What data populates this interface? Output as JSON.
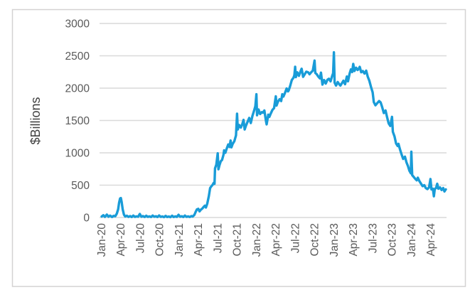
{
  "window": {
    "background_color": "#ffffff",
    "border_color": "#d4d2d2"
  },
  "chart_data": {
    "type": "line",
    "title": "",
    "xlabel": "",
    "ylabel": "$Billions",
    "legend": "none",
    "grid": "horizontal",
    "gridline_color": "#d9d9d9",
    "axis_text_color": "#595959",
    "ylabel_text_color": "#404040",
    "line_color": "#199cd8",
    "ylim": [
      0,
      3000
    ],
    "y_ticks": [
      0,
      500,
      1000,
      1500,
      2000,
      2500,
      3000
    ],
    "x_tick_labels": [
      "Jan-20",
      "Apr-20",
      "Jul-20",
      "Oct-20",
      "Jan-21",
      "Apr-21",
      "Jul-21",
      "Oct-21",
      "Jan-22",
      "Apr-22",
      "Jul-22",
      "Oct-22",
      "Jan-23",
      "Apr-23",
      "Jul-23",
      "Oct-23",
      "Jan-24",
      "Apr-24"
    ],
    "x_tick_month_index": [
      0,
      3,
      6,
      9,
      12,
      15,
      18,
      21,
      24,
      27,
      30,
      33,
      36,
      39,
      42,
      45,
      48,
      51
    ],
    "x_unit": "months since Jan-2020",
    "series": [
      {
        "color": "#199cd8",
        "points": [
          [
            0,
            15
          ],
          [
            0.25,
            35
          ],
          [
            0.5,
            10
          ],
          [
            0.8,
            45
          ],
          [
            1.05,
            12
          ],
          [
            1.3,
            30
          ],
          [
            1.6,
            8
          ],
          [
            1.85,
            25
          ],
          [
            2.1,
            20
          ],
          [
            2.35,
            60
          ],
          [
            2.55,
            130
          ],
          [
            2.7,
            230
          ],
          [
            2.85,
            295
          ],
          [
            2.97,
            300
          ],
          [
            3.1,
            240
          ],
          [
            3.25,
            130
          ],
          [
            3.45,
            45
          ],
          [
            3.65,
            15
          ],
          [
            3.9,
            28
          ],
          [
            4.15,
            10
          ],
          [
            4.4,
            22
          ],
          [
            4.65,
            8
          ],
          [
            4.9,
            30
          ],
          [
            5.15,
            10
          ],
          [
            5.4,
            18
          ],
          [
            5.65,
            12
          ],
          [
            5.9,
            55
          ],
          [
            6.15,
            12
          ],
          [
            6.4,
            22
          ],
          [
            6.65,
            8
          ],
          [
            6.9,
            28
          ],
          [
            7.15,
            10
          ],
          [
            7.4,
            18
          ],
          [
            7.65,
            8
          ],
          [
            7.9,
            30
          ],
          [
            8.15,
            12
          ],
          [
            8.4,
            20
          ],
          [
            8.65,
            8
          ],
          [
            8.9,
            32
          ],
          [
            9.15,
            10
          ],
          [
            9.4,
            16
          ],
          [
            9.65,
            6
          ],
          [
            9.9,
            25
          ],
          [
            10.15,
            8
          ],
          [
            10.4,
            15
          ],
          [
            10.65,
            6
          ],
          [
            10.9,
            28
          ],
          [
            11.15,
            8
          ],
          [
            11.4,
            18
          ],
          [
            11.65,
            10
          ],
          [
            11.9,
            42
          ],
          [
            12.15,
            12
          ],
          [
            12.4,
            20
          ],
          [
            12.65,
            8
          ],
          [
            12.9,
            30
          ],
          [
            13.15,
            10
          ],
          [
            13.4,
            18
          ],
          [
            13.65,
            8
          ],
          [
            13.9,
            22
          ],
          [
            14.1,
            15
          ],
          [
            14.35,
            40
          ],
          [
            14.55,
            85
          ],
          [
            14.75,
            125
          ],
          [
            14.97,
            134
          ],
          [
            15.15,
            95
          ],
          [
            15.35,
            120
          ],
          [
            15.6,
            140
          ],
          [
            15.8,
            165
          ],
          [
            15.97,
            182
          ],
          [
            16.15,
            155
          ],
          [
            16.35,
            215
          ],
          [
            16.6,
            330
          ],
          [
            16.8,
            455
          ],
          [
            16.97,
            480
          ],
          [
            17.15,
            500
          ],
          [
            17.35,
            535
          ],
          [
            17.48,
            521
          ],
          [
            17.56,
            760
          ],
          [
            17.75,
            815
          ],
          [
            17.97,
            992
          ],
          [
            18.08,
            745
          ],
          [
            18.25,
            810
          ],
          [
            18.45,
            870
          ],
          [
            18.65,
            890
          ],
          [
            18.85,
            965
          ],
          [
            18.97,
            1039
          ],
          [
            19.15,
            1000
          ],
          [
            19.35,
            1060
          ],
          [
            19.6,
            1130
          ],
          [
            19.8,
            1090
          ],
          [
            19.97,
            1190
          ],
          [
            20.1,
            1085
          ],
          [
            20.3,
            1140
          ],
          [
            20.55,
            1180
          ],
          [
            20.8,
            1270
          ],
          [
            20.97,
            1605
          ],
          [
            21.08,
            1360
          ],
          [
            21.3,
            1430
          ],
          [
            21.55,
            1390
          ],
          [
            21.8,
            1450
          ],
          [
            21.97,
            1510
          ],
          [
            22.15,
            1360
          ],
          [
            22.35,
            1420
          ],
          [
            22.6,
            1480
          ],
          [
            22.85,
            1540
          ],
          [
            23.1,
            1460
          ],
          [
            23.35,
            1570
          ],
          [
            23.6,
            1650
          ],
          [
            23.8,
            1720
          ],
          [
            23.97,
            1905
          ],
          [
            24.06,
            1580
          ],
          [
            24.3,
            1670
          ],
          [
            24.55,
            1600
          ],
          [
            24.8,
            1630
          ],
          [
            24.97,
            1620
          ],
          [
            25.2,
            1655
          ],
          [
            25.45,
            1490
          ],
          [
            25.55,
            1440
          ],
          [
            25.8,
            1590
          ],
          [
            25.97,
            1555
          ],
          [
            26.2,
            1610
          ],
          [
            26.45,
            1665
          ],
          [
            26.7,
            1690
          ],
          [
            26.97,
            1874
          ],
          [
            27.08,
            1730
          ],
          [
            27.3,
            1790
          ],
          [
            27.55,
            1830
          ],
          [
            27.8,
            1800
          ],
          [
            27.97,
            1906
          ],
          [
            28.15,
            1870
          ],
          [
            28.4,
            1930
          ],
          [
            28.65,
            1995
          ],
          [
            28.85,
            1950
          ],
          [
            28.97,
            1965
          ],
          [
            29.2,
            2035
          ],
          [
            29.45,
            2125
          ],
          [
            29.7,
            2160
          ],
          [
            29.85,
            2200
          ],
          [
            29.97,
            2330
          ],
          [
            30.08,
            2170
          ],
          [
            30.3,
            2245
          ],
          [
            30.55,
            2190
          ],
          [
            30.8,
            2260
          ],
          [
            30.97,
            2300
          ],
          [
            31.2,
            2175
          ],
          [
            31.45,
            2215
          ],
          [
            31.7,
            2255
          ],
          [
            31.97,
            2245
          ],
          [
            32.2,
            2215
          ],
          [
            32.45,
            2245
          ],
          [
            32.7,
            2270
          ],
          [
            32.97,
            2426
          ],
          [
            33.08,
            2235
          ],
          [
            33.3,
            2215
          ],
          [
            33.55,
            2180
          ],
          [
            33.8,
            2150
          ],
          [
            33.97,
            2240
          ],
          [
            34.2,
            2055
          ],
          [
            34.45,
            2125
          ],
          [
            34.7,
            2070
          ],
          [
            34.97,
            2130
          ],
          [
            35.2,
            2145
          ],
          [
            35.45,
            2105
          ],
          [
            35.7,
            2190
          ],
          [
            35.85,
            2230
          ],
          [
            35.97,
            2554
          ],
          [
            36.08,
            2085
          ],
          [
            36.3,
            2040
          ],
          [
            36.55,
            2095
          ],
          [
            36.8,
            2060
          ],
          [
            36.97,
            2040
          ],
          [
            37.2,
            2075
          ],
          [
            37.45,
            2115
          ],
          [
            37.7,
            2060
          ],
          [
            37.97,
            2180
          ],
          [
            38.15,
            2105
          ],
          [
            38.4,
            2225
          ],
          [
            38.6,
            2290
          ],
          [
            38.8,
            2250
          ],
          [
            38.97,
            2375
          ],
          [
            39.15,
            2265
          ],
          [
            39.4,
            2315
          ],
          [
            39.65,
            2280
          ],
          [
            39.85,
            2305
          ],
          [
            39.97,
            2330
          ],
          [
            40.2,
            2245
          ],
          [
            40.45,
            2265
          ],
          [
            40.7,
            2225
          ],
          [
            40.97,
            2270
          ],
          [
            41.2,
            2180
          ],
          [
            41.45,
            2115
          ],
          [
            41.7,
            2025
          ],
          [
            41.97,
            1934
          ],
          [
            42.15,
            1785
          ],
          [
            42.4,
            1735
          ],
          [
            42.65,
            1765
          ],
          [
            42.97,
            1800
          ],
          [
            43.2,
            1780
          ],
          [
            43.45,
            1705
          ],
          [
            43.7,
            1615
          ],
          [
            43.97,
            1655
          ],
          [
            44.2,
            1555
          ],
          [
            44.45,
            1455
          ],
          [
            44.7,
            1415
          ],
          [
            44.97,
            1556
          ],
          [
            45.1,
            1325
          ],
          [
            45.35,
            1255
          ],
          [
            45.6,
            1145
          ],
          [
            45.85,
            1105
          ],
          [
            45.97,
            1138
          ],
          [
            46.2,
            1055
          ],
          [
            46.45,
            975
          ],
          [
            46.7,
            905
          ],
          [
            46.97,
            941
          ],
          [
            47.2,
            855
          ],
          [
            47.45,
            795
          ],
          [
            47.65,
            725
          ],
          [
            47.88,
            683
          ],
          [
            47.96,
            1018
          ],
          [
            48.1,
            655
          ],
          [
            48.35,
            625
          ],
          [
            48.6,
            595
          ],
          [
            48.8,
            575
          ],
          [
            48.97,
            615
          ],
          [
            49.2,
            565
          ],
          [
            49.45,
            525
          ],
          [
            49.7,
            485
          ],
          [
            49.97,
            500
          ],
          [
            50.2,
            455
          ],
          [
            50.45,
            440
          ],
          [
            50.7,
            465
          ],
          [
            50.92,
            594
          ],
          [
            51.08,
            435
          ],
          [
            51.3,
            445
          ],
          [
            51.45,
            327
          ],
          [
            51.6,
            442
          ],
          [
            51.8,
            455
          ],
          [
            51.97,
            522
          ],
          [
            52.15,
            445
          ],
          [
            52.4,
            465
          ],
          [
            52.65,
            425
          ],
          [
            52.9,
            455
          ],
          [
            53.1,
            402
          ],
          [
            53.3,
            435
          ]
        ]
      }
    ]
  }
}
